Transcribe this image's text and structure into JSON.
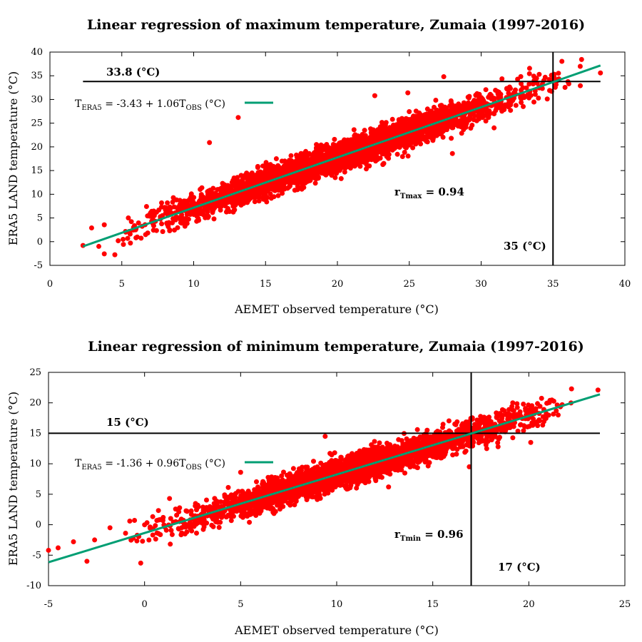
{
  "colors": {
    "points": "#ff0000",
    "fit_line": "#009e73",
    "reference_lines": "#000000",
    "background": "#ffffff"
  },
  "chart_data": [
    {
      "type": "scatter",
      "title": "Linear regression of maximum temperature, Zumaia (1997-2016)",
      "xlabel": "AEMET observed temperature (°C)",
      "ylabel": "ERA5 LAND temperature (°C)",
      "xlim": [
        0,
        40
      ],
      "ylim": [
        -5,
        40
      ],
      "xticks": [
        0,
        5,
        10,
        15,
        20,
        25,
        30,
        35,
        40
      ],
      "yticks": [
        -5,
        0,
        5,
        10,
        15,
        20,
        25,
        30,
        35,
        40
      ],
      "grid": false,
      "fit": {
        "intercept": -3.43,
        "slope": 1.06,
        "x_range": [
          2.3,
          38.3
        ],
        "legend": {
          "main": "T",
          "sub1": "ERA5",
          "mid": " = -3.43 + 1.06T",
          "sub2": "OBS",
          "tail": " (°C)"
        }
      },
      "hline": {
        "y": 33.8,
        "x_range": [
          2.3,
          38.3
        ],
        "label": "33.8 (°C)"
      },
      "vline": {
        "x": 35,
        "label": "35 (°C)"
      },
      "r": {
        "main": "r",
        "sub": "Tmax",
        "tail": " = 0.94"
      },
      "scatter_band": {
        "x_range": [
          2.3,
          38.3
        ],
        "residual_sd": 1.6,
        "count": 3200
      },
      "sample_points": [
        {
          "x": 2.3,
          "y": -0.8
        },
        {
          "x": 2.9,
          "y": 2.9
        },
        {
          "x": 3.4,
          "y": -1.0
        },
        {
          "x": 5.6,
          "y": -0.3
        },
        {
          "x": 11.1,
          "y": 20.9
        },
        {
          "x": 13.1,
          "y": 26.2
        },
        {
          "x": 22.6,
          "y": 30.8
        },
        {
          "x": 24.9,
          "y": 31.4
        },
        {
          "x": 27.4,
          "y": 34.8
        },
        {
          "x": 35.3,
          "y": 34.0
        },
        {
          "x": 36.1,
          "y": 33.3
        },
        {
          "x": 36.9,
          "y": 32.9
        },
        {
          "x": 38.3,
          "y": 35.6
        },
        {
          "x": 34.6,
          "y": 30.1
        },
        {
          "x": 30.9,
          "y": 24.0
        },
        {
          "x": 28.0,
          "y": 18.6
        },
        {
          "x": 32.9,
          "y": 30.9
        },
        {
          "x": 29.7,
          "y": 28.9
        }
      ]
    },
    {
      "type": "scatter",
      "title": "Linear regression of minimum temperature, Zumaia (1997-2016)",
      "xlabel": "AEMET observed temperature (°C)",
      "ylabel": "ERA5 LAND temperature (°C)",
      "xlim": [
        -5,
        25
      ],
      "ylim": [
        -10,
        25
      ],
      "xticks": [
        -5,
        0,
        5,
        10,
        15,
        20,
        25
      ],
      "yticks": [
        -10,
        -5,
        0,
        5,
        10,
        15,
        20,
        25
      ],
      "grid": false,
      "fit": {
        "intercept": -1.36,
        "slope": 0.96,
        "x_range": [
          -5,
          23.7
        ],
        "legend": {
          "main": "T",
          "sub1": "ERA5",
          "mid": " = -1.36 + 0.96T",
          "sub2": "OBS",
          "tail": " (°C)"
        }
      },
      "hline": {
        "y": 15,
        "x_range": [
          -5,
          23.7
        ],
        "label": "15 (°C)"
      },
      "vline": {
        "x": 17,
        "label": "17 (°C)"
      },
      "r": {
        "main": "r",
        "sub": "Tmin",
        "tail": " = 0.96"
      },
      "scatter_band": {
        "x_range": [
          -2.0,
          23.6
        ],
        "residual_sd": 1.2,
        "count": 3200
      },
      "sample_points": [
        {
          "x": -5.0,
          "y": -4.2
        },
        {
          "x": -4.5,
          "y": -3.8
        },
        {
          "x": -3.7,
          "y": -2.8
        },
        {
          "x": -3.0,
          "y": -6.0
        },
        {
          "x": -2.6,
          "y": -2.5
        },
        {
          "x": -1.8,
          "y": -0.5
        },
        {
          "x": -0.2,
          "y": -6.3
        },
        {
          "x": 23.6,
          "y": 22.1
        },
        {
          "x": 21.1,
          "y": 20.4
        },
        {
          "x": 20.1,
          "y": 13.5
        },
        {
          "x": 16.9,
          "y": 9.5
        },
        {
          "x": 12.7,
          "y": 6.2
        },
        {
          "x": 5.0,
          "y": 8.6
        },
        {
          "x": 1.3,
          "y": 4.3
        },
        {
          "x": 9.4,
          "y": 14.5
        },
        {
          "x": 14.2,
          "y": 15.6
        },
        {
          "x": 18.4,
          "y": 12.8
        }
      ]
    }
  ]
}
